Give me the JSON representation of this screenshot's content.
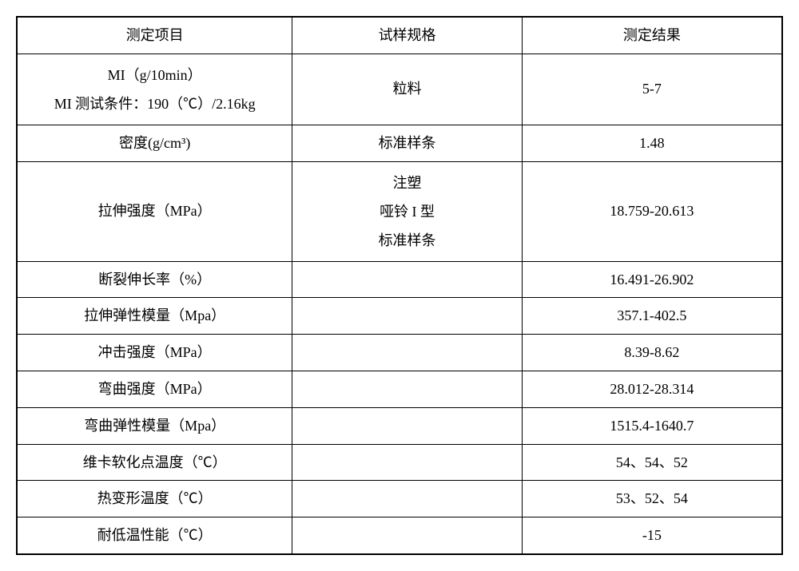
{
  "table": {
    "type": "table",
    "border_color": "#000000",
    "background_color": "#ffffff",
    "text_color": "#000000",
    "font_size": 18,
    "columns": [
      {
        "key": "measurement_item",
        "label": "测定项目",
        "width": "36%"
      },
      {
        "key": "sample_spec",
        "label": "试样规格",
        "width": "30%"
      },
      {
        "key": "result",
        "label": "测定结果",
        "width": "34%"
      }
    ],
    "rows": [
      {
        "item_line1": "MI（g/10min）",
        "item_line2": "MI 测试条件：190（℃）/2.16kg",
        "spec": "粒料",
        "result": "5-7"
      },
      {
        "item": "密度(g/cm³)",
        "spec": "标准样条",
        "result": "1.48"
      },
      {
        "item": "拉伸强度（MPa）",
        "spec_line1": "注塑",
        "spec_line2": "哑铃 I 型",
        "spec_line3": "标准样条",
        "result": "18.759-20.613"
      },
      {
        "item": "断裂伸长率（%）",
        "spec": "",
        "result": "16.491-26.902"
      },
      {
        "item": "拉伸弹性模量（Mpa）",
        "spec": "",
        "result": "357.1-402.5"
      },
      {
        "item": "冲击强度（MPa）",
        "spec": "",
        "result": "8.39-8.62"
      },
      {
        "item": "弯曲强度（MPa）",
        "spec": "",
        "result": "28.012-28.314"
      },
      {
        "item": "弯曲弹性模量（Mpa）",
        "spec": "",
        "result": "1515.4-1640.7"
      },
      {
        "item": "维卡软化点温度（℃）",
        "spec": "",
        "result": "54、54、52"
      },
      {
        "item": "热变形温度（℃）",
        "spec": "",
        "result": "53、52、54"
      },
      {
        "item": "耐低温性能（℃）",
        "spec": "",
        "result": "-15"
      }
    ]
  }
}
